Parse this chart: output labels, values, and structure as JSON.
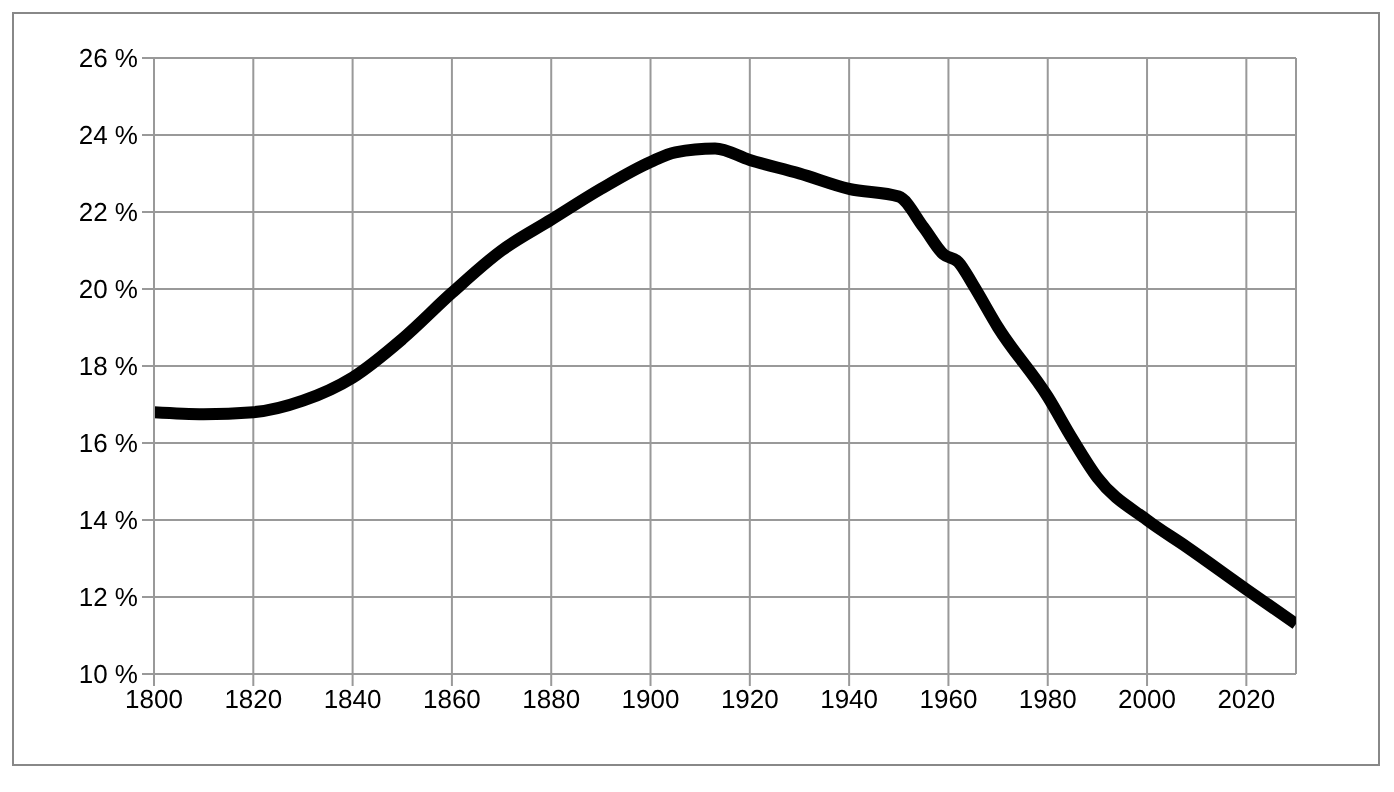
{
  "chart_data": {
    "type": "line",
    "x": [
      1800,
      1810,
      1820,
      1830,
      1840,
      1850,
      1860,
      1870,
      1880,
      1890,
      1900,
      1905,
      1913,
      1920,
      1930,
      1940,
      1950,
      1955,
      1959,
      1962,
      1965,
      1970,
      1980,
      1985,
      1990,
      2000,
      2008,
      2020,
      2030
    ],
    "series": [
      {
        "color": "#000000",
        "values": [
          16.8,
          16.75,
          16.8,
          17.1,
          17.7,
          18.7,
          19.9,
          21.0,
          21.8,
          22.6,
          23.3,
          23.55,
          23.65,
          23.35,
          23.0,
          22.6,
          22.4,
          21.6,
          20.9,
          20.7,
          20.1,
          19.0,
          17.2,
          16.1,
          15.1,
          14.0,
          13.3,
          12.2,
          11.3
        ]
      }
    ],
    "xlim": [
      1800,
      2030
    ],
    "xticks": [
      1800,
      1820,
      1840,
      1860,
      1880,
      1900,
      1920,
      1940,
      1960,
      1980,
      2000,
      2020
    ],
    "ylim": [
      10,
      26
    ],
    "yticks": [
      {
        "value": 10,
        "label": "10 %"
      },
      {
        "value": 12,
        "label": "12 %"
      },
      {
        "value": 14,
        "label": "14 %"
      },
      {
        "value": 16,
        "label": "16 %"
      },
      {
        "value": 18,
        "label": "18 %"
      },
      {
        "value": 20,
        "label": "20 %"
      },
      {
        "value": 22,
        "label": "22 %"
      },
      {
        "value": 24,
        "label": "24 %"
      },
      {
        "value": 26,
        "label": "26 %"
      }
    ],
    "grid": true,
    "marker": "none",
    "line_style": "solid"
  }
}
